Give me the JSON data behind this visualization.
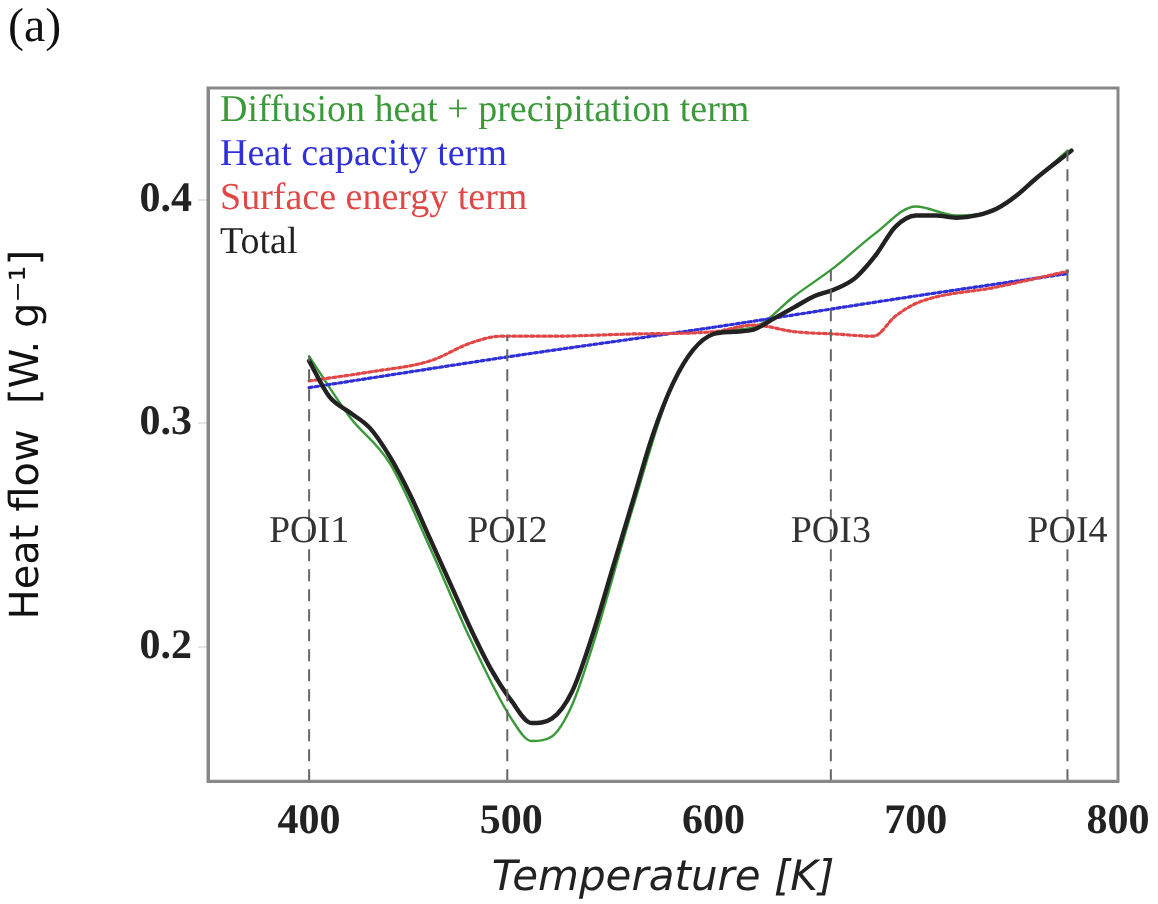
{
  "chart_data": {
    "type": "line",
    "title": "(a)",
    "xlabel": "Temperature [K]",
    "ylabel": "Heat flow  [W. g⁻¹]",
    "xlim": [
      350,
      800
    ],
    "xticks": [
      400,
      500,
      600,
      700,
      800
    ],
    "ylim": [
      0.14,
      0.45
    ],
    "yticks": [
      0.2,
      0.3,
      0.4
    ],
    "grid": false,
    "legend": "top left",
    "marker": "none",
    "ref_lines": [
      {
        "axis": "x",
        "value": 400,
        "label": "POI1",
        "line_style": "dashed"
      },
      {
        "axis": "x",
        "value": 498,
        "label": "POI2",
        "line_style": "dashed"
      },
      {
        "axis": "x",
        "value": 658,
        "label": "POI3",
        "line_style": "dashed"
      },
      {
        "axis": "x",
        "value": 775,
        "label": "POI4",
        "line_style": "dashed"
      }
    ],
    "series": [
      {
        "name": "Diffusion heat + precipitation term",
        "color": "#3a9a3a",
        "line_style": "solid",
        "x": [
          400,
          420,
          440,
          460,
          480,
          500,
          510,
          520,
          530,
          540,
          560,
          580,
          600,
          620,
          640,
          660,
          680,
          700,
          720,
          740,
          760,
          775
        ],
        "values": [
          0.33,
          0.303,
          0.282,
          0.244,
          0.203,
          0.168,
          0.158,
          0.16,
          0.174,
          0.2,
          0.262,
          0.318,
          0.34,
          0.343,
          0.357,
          0.37,
          0.385,
          0.397,
          0.393,
          0.396,
          0.41,
          0.422
        ]
      },
      {
        "name": "Heat capacity term",
        "color": "#3030d8",
        "line_style": "dotted",
        "x": [
          400,
          500,
          600,
          700,
          775
        ],
        "values": [
          0.316,
          0.33,
          0.343,
          0.357,
          0.367
        ]
      },
      {
        "name": "Surface energy term",
        "color": "#e04848",
        "line_style": "dotted",
        "x": [
          400,
          430,
          460,
          480,
          495,
          520,
          560,
          600,
          620,
          640,
          660,
          679,
          690,
          701,
          740,
          775
        ],
        "values": [
          0.319,
          0.323,
          0.328,
          0.336,
          0.339,
          0.339,
          0.34,
          0.341,
          0.344,
          0.341,
          0.34,
          0.339,
          0.348,
          0.354,
          0.361,
          0.368
        ]
      },
      {
        "name": "Total",
        "color": "#222222",
        "line_style": "solid",
        "x": [
          400,
          410,
          420,
          430,
          440,
          450,
          460,
          470,
          480,
          490,
          500,
          510,
          520,
          530,
          540,
          550,
          560,
          570,
          580,
          590,
          600,
          610,
          620,
          630,
          640,
          650,
          660,
          670,
          680,
          690,
          700,
          710,
          720,
          730,
          740,
          750,
          760,
          777
        ],
        "values": [
          0.328,
          0.312,
          0.305,
          0.298,
          0.285,
          0.268,
          0.248,
          0.228,
          0.208,
          0.19,
          0.176,
          0.166,
          0.168,
          0.18,
          0.205,
          0.235,
          0.265,
          0.295,
          0.318,
          0.333,
          0.34,
          0.341,
          0.342,
          0.347,
          0.352,
          0.357,
          0.36,
          0.365,
          0.375,
          0.388,
          0.393,
          0.393,
          0.392,
          0.393,
          0.396,
          0.402,
          0.41,
          0.422
        ]
      }
    ]
  }
}
